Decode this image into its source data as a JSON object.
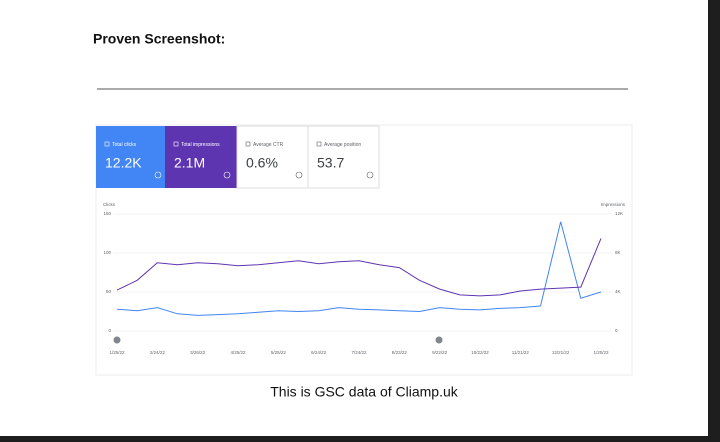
{
  "header": {
    "title": "Proven Screenshot:"
  },
  "cards": [
    {
      "label": "Total clicks",
      "value": "12.2K"
    },
    {
      "label": "Total impressions",
      "value": "2.1M"
    },
    {
      "label": "Average CTR",
      "value": "0.6%"
    },
    {
      "label": "Average position",
      "value": "53.7"
    }
  ],
  "chart_data": {
    "type": "line",
    "y_label": "Clicks",
    "y2_label": "Impressions",
    "categories": [
      "1/25/22",
      null,
      "2/24/22",
      null,
      "3/26/22",
      null,
      "4/25/22",
      null,
      "5/25/22",
      null,
      "6/24/22",
      null,
      "7/24/22",
      null,
      "8/23/22",
      null,
      "9/22/22",
      null,
      "10/22/22",
      null,
      "11/21/22",
      null,
      "12/21/22",
      null,
      "1/20/23"
    ],
    "series": [
      {
        "name": "Clicks",
        "color": "#4285f4",
        "values": [
          28,
          26,
          30,
          22,
          20,
          21,
          22,
          24,
          26,
          25,
          26,
          30,
          28,
          27,
          26,
          25,
          30,
          28,
          27,
          29,
          30,
          32,
          140,
          42,
          50
        ]
      },
      {
        "name": "Impressions",
        "color": "#5e35b1",
        "axis": "y2",
        "values": [
          4200,
          5200,
          7000,
          6800,
          7000,
          6900,
          6700,
          6800,
          7000,
          7200,
          6900,
          7100,
          7200,
          6800,
          6500,
          5200,
          4300,
          3700,
          3600,
          3700,
          4100,
          4300,
          4400,
          4500,
          9500
        ]
      }
    ],
    "ylim": [
      0,
      150
    ],
    "yticks": [
      0,
      50,
      100,
      150
    ],
    "y2lim": [
      0,
      12000
    ],
    "y2ticks": [
      {
        "value": 0,
        "label": "0"
      },
      {
        "value": 4000,
        "label": "4K"
      },
      {
        "value": 8000,
        "label": "8K"
      },
      {
        "value": 12000,
        "label": "12K"
      }
    ],
    "grid": true
  },
  "caption": "This is GSC data of Cliamp.uk"
}
